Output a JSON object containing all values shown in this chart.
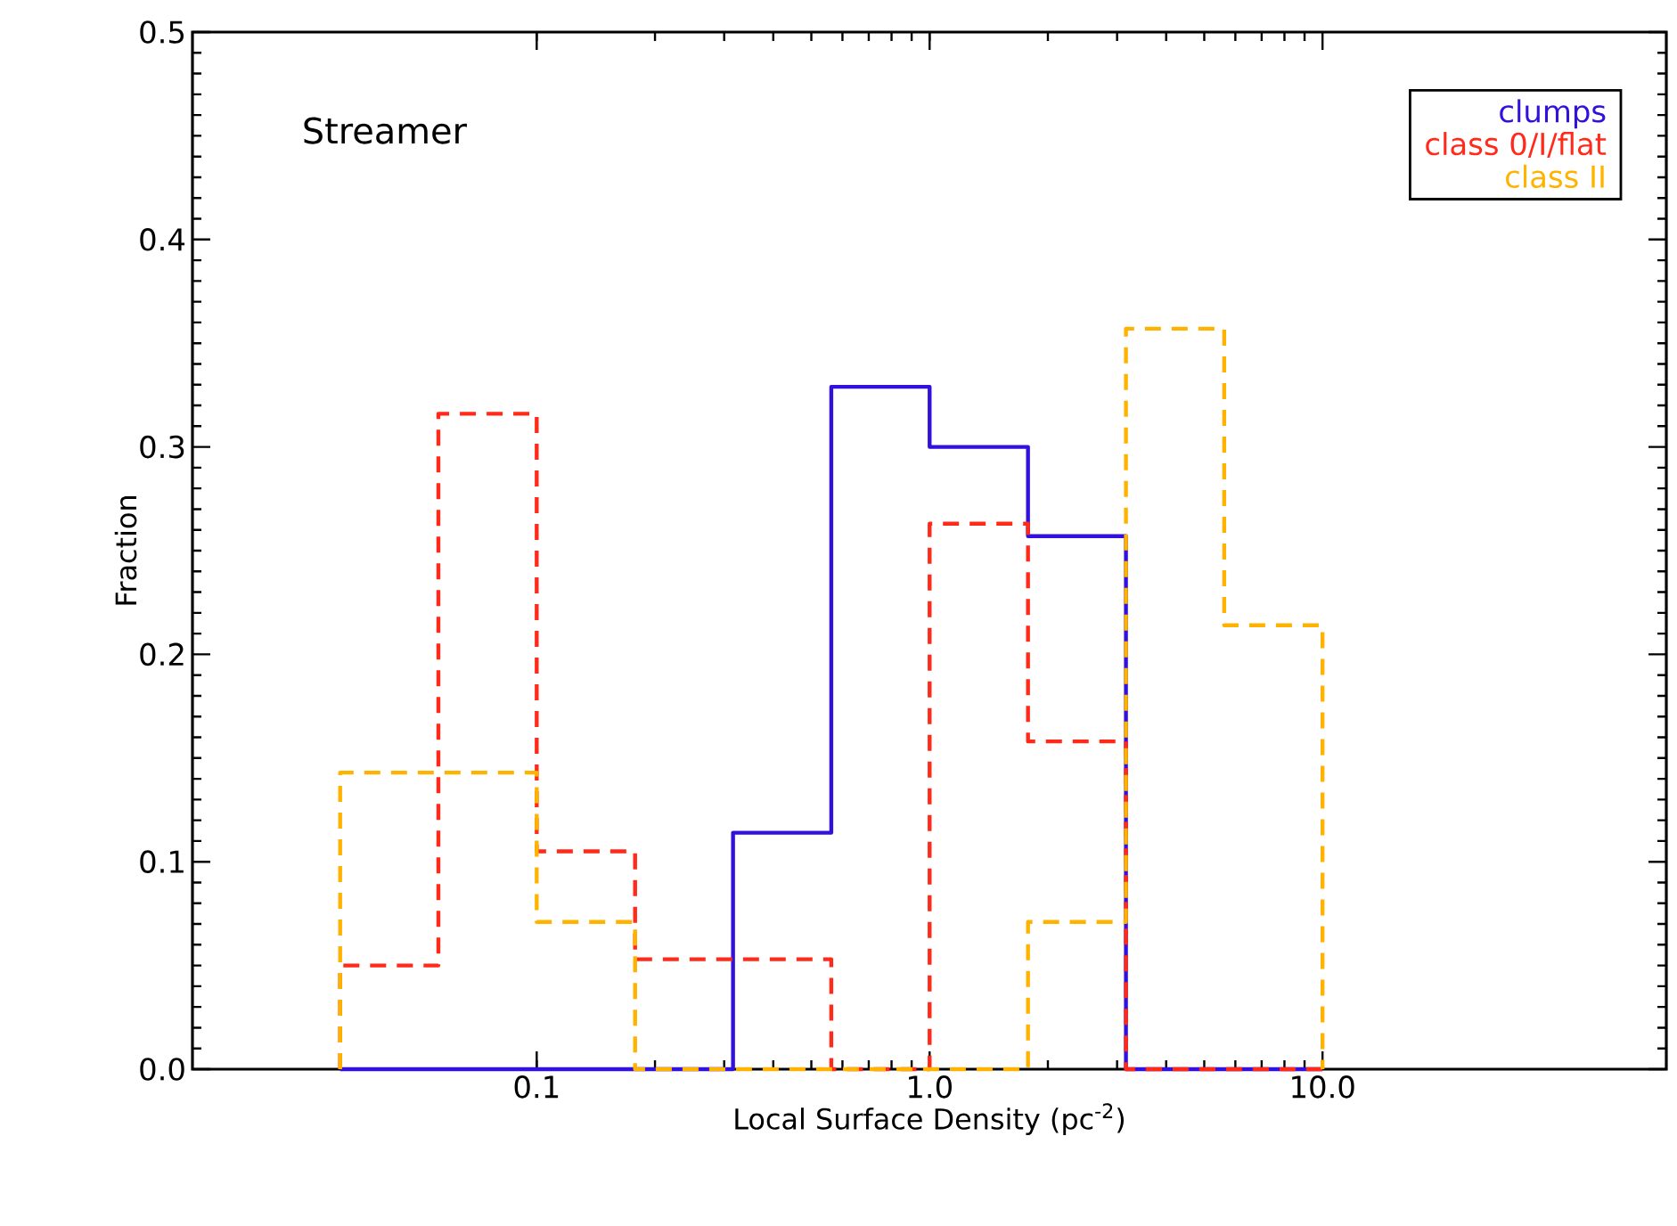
{
  "chart_data": {
    "type": "histogram",
    "title": "Streamer",
    "xlabel": "Local Surface Density (pc$^{-2}$)",
    "ylabel": "Fraction",
    "bins": [
      0.0316,
      0.0562,
      0.1,
      0.178,
      0.316,
      0.562,
      1.0,
      1.78,
      3.16,
      5.62,
      10.0
    ],
    "series": [
      {
        "name": "clumps",
        "color": "#3311dd",
        "line_style": "solid",
        "values": [
          0,
          0,
          0,
          0,
          0.114,
          0.329,
          0.3,
          0.257,
          0,
          0
        ]
      },
      {
        "name": "class 0/I/flat",
        "color": "#ff2a1a",
        "line_style": "dashed",
        "values": [
          0.05,
          0.316,
          0.105,
          0.053,
          0.053,
          0,
          0.263,
          0.158,
          0,
          0
        ]
      },
      {
        "name": "class II",
        "color": "#ffb300",
        "line_style": "dashed",
        "values": [
          0.143,
          0.143,
          0.071,
          0,
          0,
          0,
          0,
          0.071,
          0.357,
          0.214
        ]
      }
    ],
    "log": "x",
    "xlim": [
      0.0133,
      75
    ],
    "ylim": [
      0,
      0.5
    ],
    "xticks": [
      {
        "value": 0.1,
        "label": "0.1"
      },
      {
        "value": 1,
        "label": "1.0"
      },
      {
        "value": 10,
        "label": "10.0"
      }
    ],
    "yticks": [
      {
        "value": 0,
        "label": "0.0"
      },
      {
        "value": 0.1,
        "label": "0.1"
      },
      {
        "value": 0.2,
        "label": "0.2"
      },
      {
        "value": 0.3,
        "label": "0.3"
      },
      {
        "value": 0.4,
        "label": "0.4"
      },
      {
        "value": 0.5,
        "label": "0.5"
      }
    ],
    "grid": false,
    "legend": "top right"
  }
}
